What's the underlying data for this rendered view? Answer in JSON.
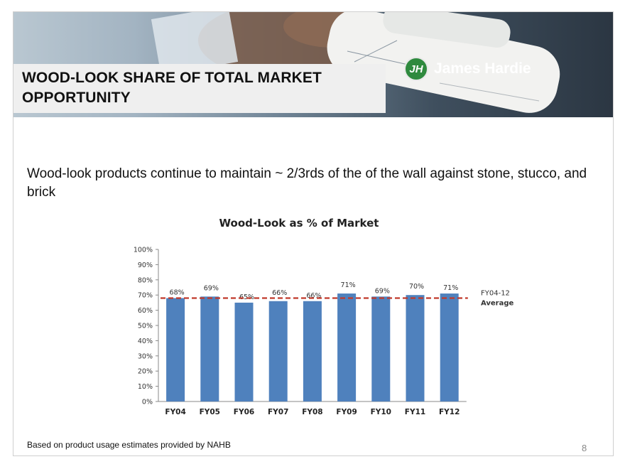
{
  "header": {
    "title_line1": "WOOD-LOOK SHARE OF TOTAL MARKET",
    "title_line2": "OPPORTUNITY",
    "logo_monogram": "JH",
    "logo_text": "James Hardie"
  },
  "body": {
    "statement": "Wood-look products continue to maintain ~ 2/3rds of the of the wall against stone, stucco, and brick"
  },
  "chart_data": {
    "type": "bar",
    "title": "Wood-Look as % of Market",
    "categories": [
      "FY04",
      "FY05",
      "FY06",
      "FY07",
      "FY08",
      "FY09",
      "FY10",
      "FY11",
      "FY12"
    ],
    "values": [
      68,
      69,
      65,
      66,
      66,
      71,
      69,
      70,
      71
    ],
    "value_labels": [
      "68%",
      "69%",
      "65%",
      "66%",
      "66%",
      "71%",
      "69%",
      "70%",
      "71%"
    ],
    "ylim": [
      0,
      100
    ],
    "yticks": [
      "0%",
      "10%",
      "20%",
      "30%",
      "40%",
      "50%",
      "60%",
      "70%",
      "80%",
      "90%",
      "100%"
    ],
    "reference_line": {
      "value": 68,
      "label_line1": "FY04-12",
      "label_line2": "Average",
      "color": "#c0392b",
      "style": "dashed"
    },
    "bar_color": "#4f81bd",
    "grid": false
  },
  "footer": {
    "note": "Based on product usage estimates provided by NAHB",
    "page_number": "8"
  }
}
